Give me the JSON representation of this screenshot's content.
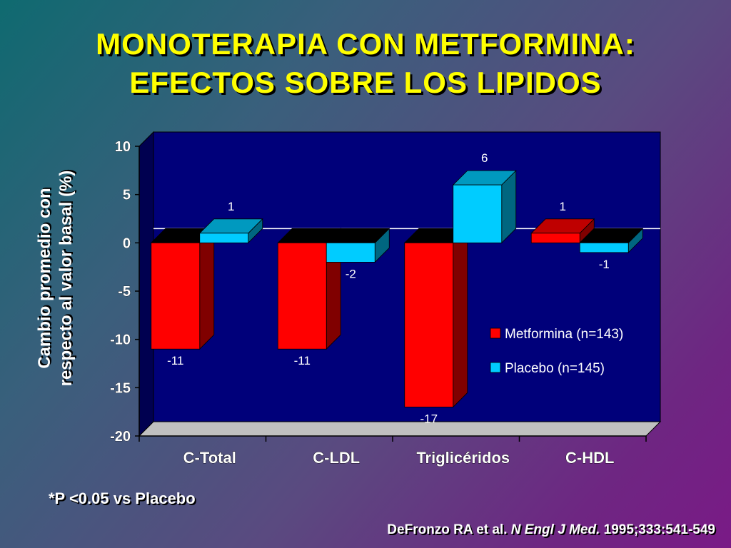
{
  "slide": {
    "title_line_1": "MONOTERAPIA CON METFORMINA:",
    "title_line_2": "EFECTOS SOBRE LOS LIPIDOS",
    "footnote": "*P <0.05 vs Placebo",
    "citation": {
      "authors": "DeFronzo RA et al.",
      "journal": "N Engl J Med.",
      "ref": "1995;333:541-549"
    }
  },
  "colors": {
    "title": "#ffff00",
    "plot_background": "#00007a",
    "metformina": "#ff0000",
    "placebo": "#00ccff",
    "floor": "#c0c0c0"
  },
  "chart_data": {
    "type": "bar",
    "ylabel_line_1": "Cambio promedio con",
    "ylabel_line_2": "respecto al valor basal (%)",
    "categories": [
      "C-Total",
      "C-LDL",
      "Triglicéridos",
      "C-HDL"
    ],
    "series": [
      {
        "name": "Metformina (n=143)",
        "values": [
          -11,
          -11,
          -17,
          1
        ],
        "labels": [
          "-11",
          "-11",
          "-17",
          "1"
        ],
        "color": "#ff0000"
      },
      {
        "name": "Placebo (n=145)",
        "values": [
          1,
          -2,
          6,
          -1
        ],
        "labels": [
          "1",
          "-2",
          "6",
          "-1"
        ],
        "color": "#00ccff"
      }
    ],
    "ylim": [
      -20,
      10
    ],
    "yticks": [
      10,
      5,
      0,
      -5,
      -10,
      -15,
      -20
    ],
    "ytick_labels": [
      "10",
      "5",
      "0",
      "-5",
      "-10",
      "-15",
      "-20"
    ],
    "grid": false,
    "legend_position": "right-middle",
    "style": "3d"
  }
}
